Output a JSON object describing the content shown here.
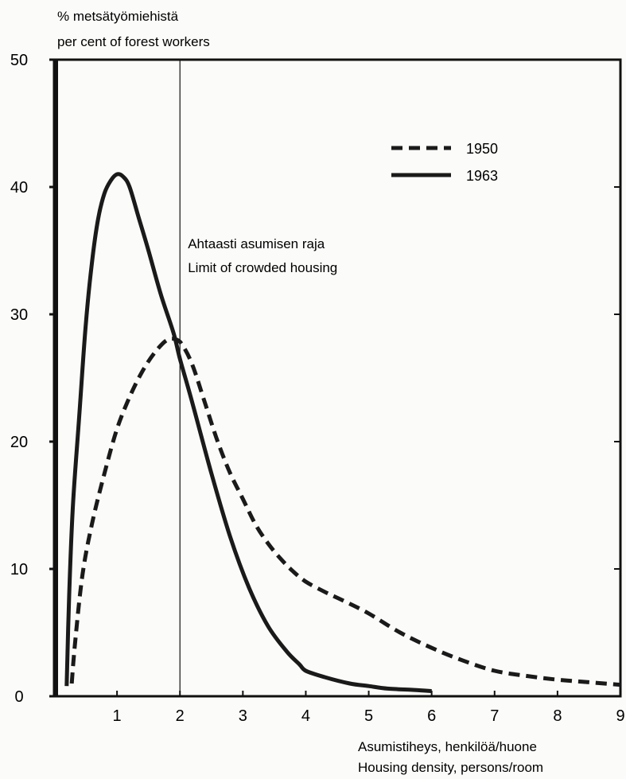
{
  "chart_data": {
    "type": "line",
    "title": "",
    "ylabel_lines": [
      "% metsätyömiehistä",
      "per cent of forest workers"
    ],
    "xlabel_lines": [
      "Asumistiheys, henkilöä/huone",
      "Housing density, persons/room"
    ],
    "xlim": [
      0,
      9
    ],
    "ylim": [
      0,
      50
    ],
    "x_ticks": [
      1,
      2,
      3,
      4,
      5,
      6,
      7,
      8,
      9
    ],
    "y_ticks": [
      0,
      10,
      20,
      30,
      40,
      50
    ],
    "grid": false,
    "legend_position": "top-right",
    "series": [
      {
        "name": "1950",
        "style": "dashed",
        "x": [
          0.28,
          0.33,
          0.45,
          0.6,
          0.8,
          1.0,
          1.2,
          1.4,
          1.6,
          1.8,
          1.95,
          2.05,
          2.2,
          2.4,
          2.6,
          2.8,
          3.0,
          3.2,
          3.4,
          3.6,
          3.8,
          4.0,
          4.3,
          4.6,
          5.0,
          5.5,
          6.0,
          6.5,
          7.0,
          7.5,
          8.0,
          8.5,
          9.0
        ],
        "values": [
          1,
          4,
          9.5,
          13.5,
          17.5,
          21,
          23.5,
          25.5,
          27,
          28,
          28,
          27.5,
          26,
          23,
          20,
          17.5,
          15.5,
          13.5,
          12,
          10.8,
          9.8,
          9,
          8.2,
          7.5,
          6.5,
          5,
          3.8,
          2.8,
          2,
          1.6,
          1.3,
          1.1,
          0.9
        ]
      },
      {
        "name": "1963",
        "style": "solid",
        "x": [
          0.2,
          0.24,
          0.3,
          0.4,
          0.5,
          0.6,
          0.7,
          0.8,
          0.9,
          1.0,
          1.1,
          1.2,
          1.35,
          1.5,
          1.7,
          1.9,
          2.0,
          2.2,
          2.5,
          2.8,
          3.1,
          3.4,
          3.7,
          3.9,
          4.0,
          4.3,
          4.7,
          5.0,
          5.3,
          5.7,
          6.0
        ],
        "values": [
          0.8,
          8,
          15,
          22,
          29,
          34,
          37.5,
          39.5,
          40.5,
          41,
          40.8,
          40,
          37.5,
          35,
          31.5,
          28.5,
          26.5,
          23,
          17.5,
          12.5,
          8.5,
          5.5,
          3.5,
          2.5,
          2,
          1.5,
          1,
          0.8,
          0.6,
          0.5,
          0.4
        ]
      }
    ],
    "annotation": {
      "x": 2,
      "lines": [
        "Ahtaasti asumisen raja",
        "Limit of crowded housing"
      ]
    }
  }
}
